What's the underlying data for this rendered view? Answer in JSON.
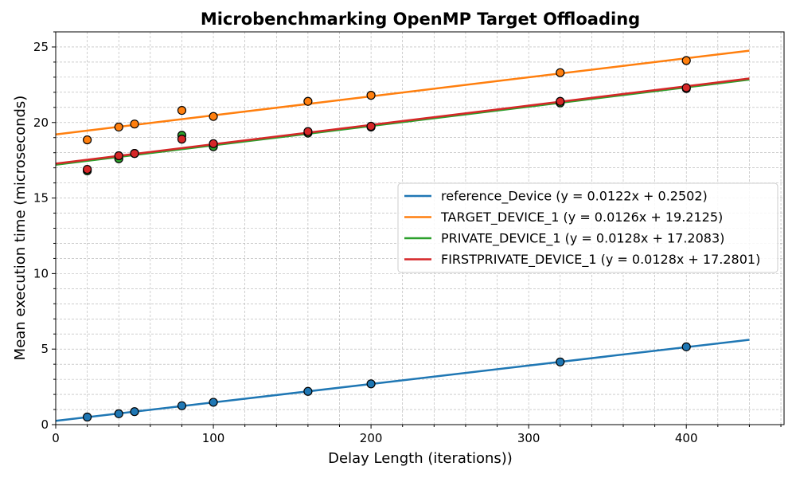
{
  "chart_data": {
    "type": "scatter",
    "title": "Microbenchmarking OpenMP Target Offloading",
    "xlabel": "Delay Length (iterations))",
    "ylabel": "Mean execution time (microseconds)",
    "xlim": [
      0,
      462
    ],
    "ylim": [
      0,
      26
    ],
    "x_ticks": [
      0,
      100,
      200,
      300,
      400
    ],
    "y_ticks": [
      0,
      5,
      10,
      15,
      20,
      25
    ],
    "grid": true,
    "legend_position": "center-right",
    "x": [
      20,
      40,
      50,
      80,
      100,
      160,
      200,
      320,
      400
    ],
    "series": [
      {
        "name": "reference_Device (y = 0.0122x + 0.2502)",
        "color": "#1f77b4",
        "values": [
          0.5,
          0.72,
          0.86,
          1.25,
          1.48,
          2.2,
          2.7,
          4.15,
          5.15
        ],
        "fit": {
          "slope": 0.0122,
          "intercept": 0.2502,
          "x_range": [
            0,
            440
          ]
        }
      },
      {
        "name": "TARGET_DEVICE_1 (y = 0.0126x + 19.2125)",
        "color": "#ff7f0e",
        "values": [
          18.85,
          19.7,
          19.9,
          20.8,
          20.4,
          21.4,
          21.8,
          23.3,
          24.1
        ],
        "fit": {
          "slope": 0.0126,
          "intercept": 19.2125,
          "x_range": [
            0,
            440
          ]
        }
      },
      {
        "name": "PRIVATE_DEVICE_1 (y = 0.0128x + 17.2083)",
        "color": "#2ca02c",
        "values": [
          16.8,
          17.6,
          17.95,
          19.15,
          18.4,
          19.3,
          19.7,
          21.3,
          22.25
        ],
        "fit": {
          "slope": 0.0128,
          "intercept": 17.2083,
          "x_range": [
            0,
            440
          ]
        }
      },
      {
        "name": "FIRSTPRIVATE_DEVICE_1 (y = 0.0128x + 17.2801)",
        "color": "#d62728",
        "values": [
          16.9,
          17.8,
          17.95,
          18.9,
          18.6,
          19.4,
          19.75,
          21.4,
          22.3
        ],
        "fit": {
          "slope": 0.0128,
          "intercept": 17.2801,
          "x_range": [
            0,
            440
          ]
        }
      }
    ]
  }
}
